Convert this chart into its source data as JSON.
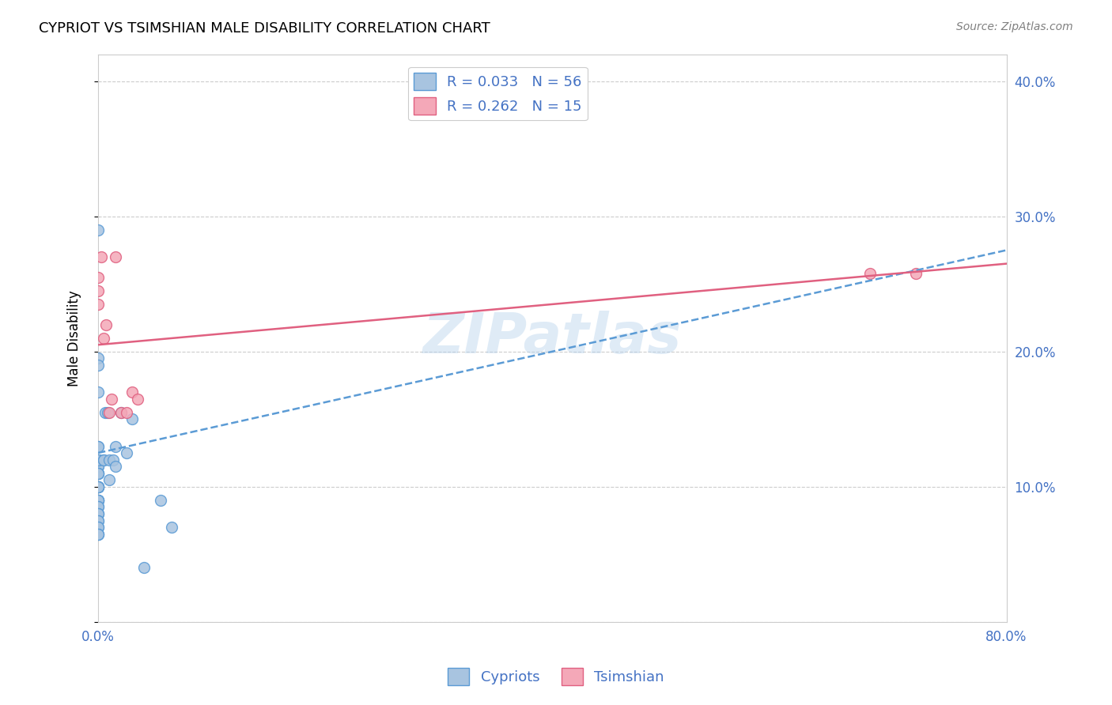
{
  "title": "CYPRIOT VS TSIMSHIAN MALE DISABILITY CORRELATION CHART",
  "source": "Source: ZipAtlas.com",
  "xlabel": "",
  "ylabel": "Male Disability",
  "xlim": [
    0.0,
    0.8
  ],
  "ylim": [
    0.0,
    0.42
  ],
  "xticks": [
    0.0,
    0.1,
    0.2,
    0.3,
    0.4,
    0.5,
    0.6,
    0.7,
    0.8
  ],
  "xticklabels": [
    "0.0%",
    "",
    "",
    "",
    "",
    "",
    "",
    "",
    "80.0%"
  ],
  "yticks": [
    0.0,
    0.1,
    0.2,
    0.3,
    0.4
  ],
  "yticklabels": [
    "",
    "10.0%",
    "20.0%",
    "30.0%",
    "40.0%"
  ],
  "cypriot_color": "#a8c4e0",
  "tsimshian_color": "#f4a8b8",
  "cypriot_line_color": "#5b9bd5",
  "tsimshian_line_color": "#e06080",
  "grid_color": "#cccccc",
  "label_color": "#4472c4",
  "watermark": "ZIPatlas",
  "cypriot_line_x0": 0.0,
  "cypriot_line_y0": 0.125,
  "cypriot_line_x1": 0.8,
  "cypriot_line_y1": 0.275,
  "tsimshian_line_x0": 0.0,
  "tsimshian_line_y0": 0.205,
  "tsimshian_line_x1": 0.8,
  "tsimshian_line_y1": 0.265,
  "cypriot_x": [
    0.0,
    0.0,
    0.0,
    0.0,
    0.0,
    0.0,
    0.0,
    0.0,
    0.0,
    0.0,
    0.0,
    0.0,
    0.0,
    0.0,
    0.0,
    0.0,
    0.0,
    0.0,
    0.0,
    0.0,
    0.0,
    0.0,
    0.0,
    0.0,
    0.0,
    0.0,
    0.0,
    0.0,
    0.0,
    0.0,
    0.0,
    0.0,
    0.0,
    0.0,
    0.0,
    0.0,
    0.0,
    0.0,
    0.0,
    0.0,
    0.0,
    0.005,
    0.005,
    0.006,
    0.008,
    0.01,
    0.01,
    0.013,
    0.015,
    0.015,
    0.02,
    0.025,
    0.03,
    0.04,
    0.055,
    0.065
  ],
  "cypriot_y": [
    0.12,
    0.12,
    0.115,
    0.115,
    0.11,
    0.11,
    0.11,
    0.11,
    0.1,
    0.1,
    0.1,
    0.1,
    0.1,
    0.1,
    0.09,
    0.09,
    0.09,
    0.09,
    0.09,
    0.085,
    0.085,
    0.08,
    0.08,
    0.08,
    0.075,
    0.075,
    0.07,
    0.07,
    0.065,
    0.065,
    0.065,
    0.17,
    0.195,
    0.29,
    0.19,
    0.13,
    0.13,
    0.12,
    0.12,
    0.12,
    0.1,
    0.12,
    0.12,
    0.155,
    0.155,
    0.12,
    0.105,
    0.12,
    0.115,
    0.13,
    0.155,
    0.125,
    0.15,
    0.04,
    0.09,
    0.07
  ],
  "tsimshian_x": [
    0.0,
    0.0,
    0.0,
    0.003,
    0.005,
    0.007,
    0.01,
    0.012,
    0.015,
    0.02,
    0.025,
    0.03,
    0.035,
    0.68,
    0.72
  ],
  "tsimshian_y": [
    0.255,
    0.245,
    0.235,
    0.27,
    0.21,
    0.22,
    0.155,
    0.165,
    0.27,
    0.155,
    0.155,
    0.17,
    0.165,
    0.258,
    0.258
  ]
}
